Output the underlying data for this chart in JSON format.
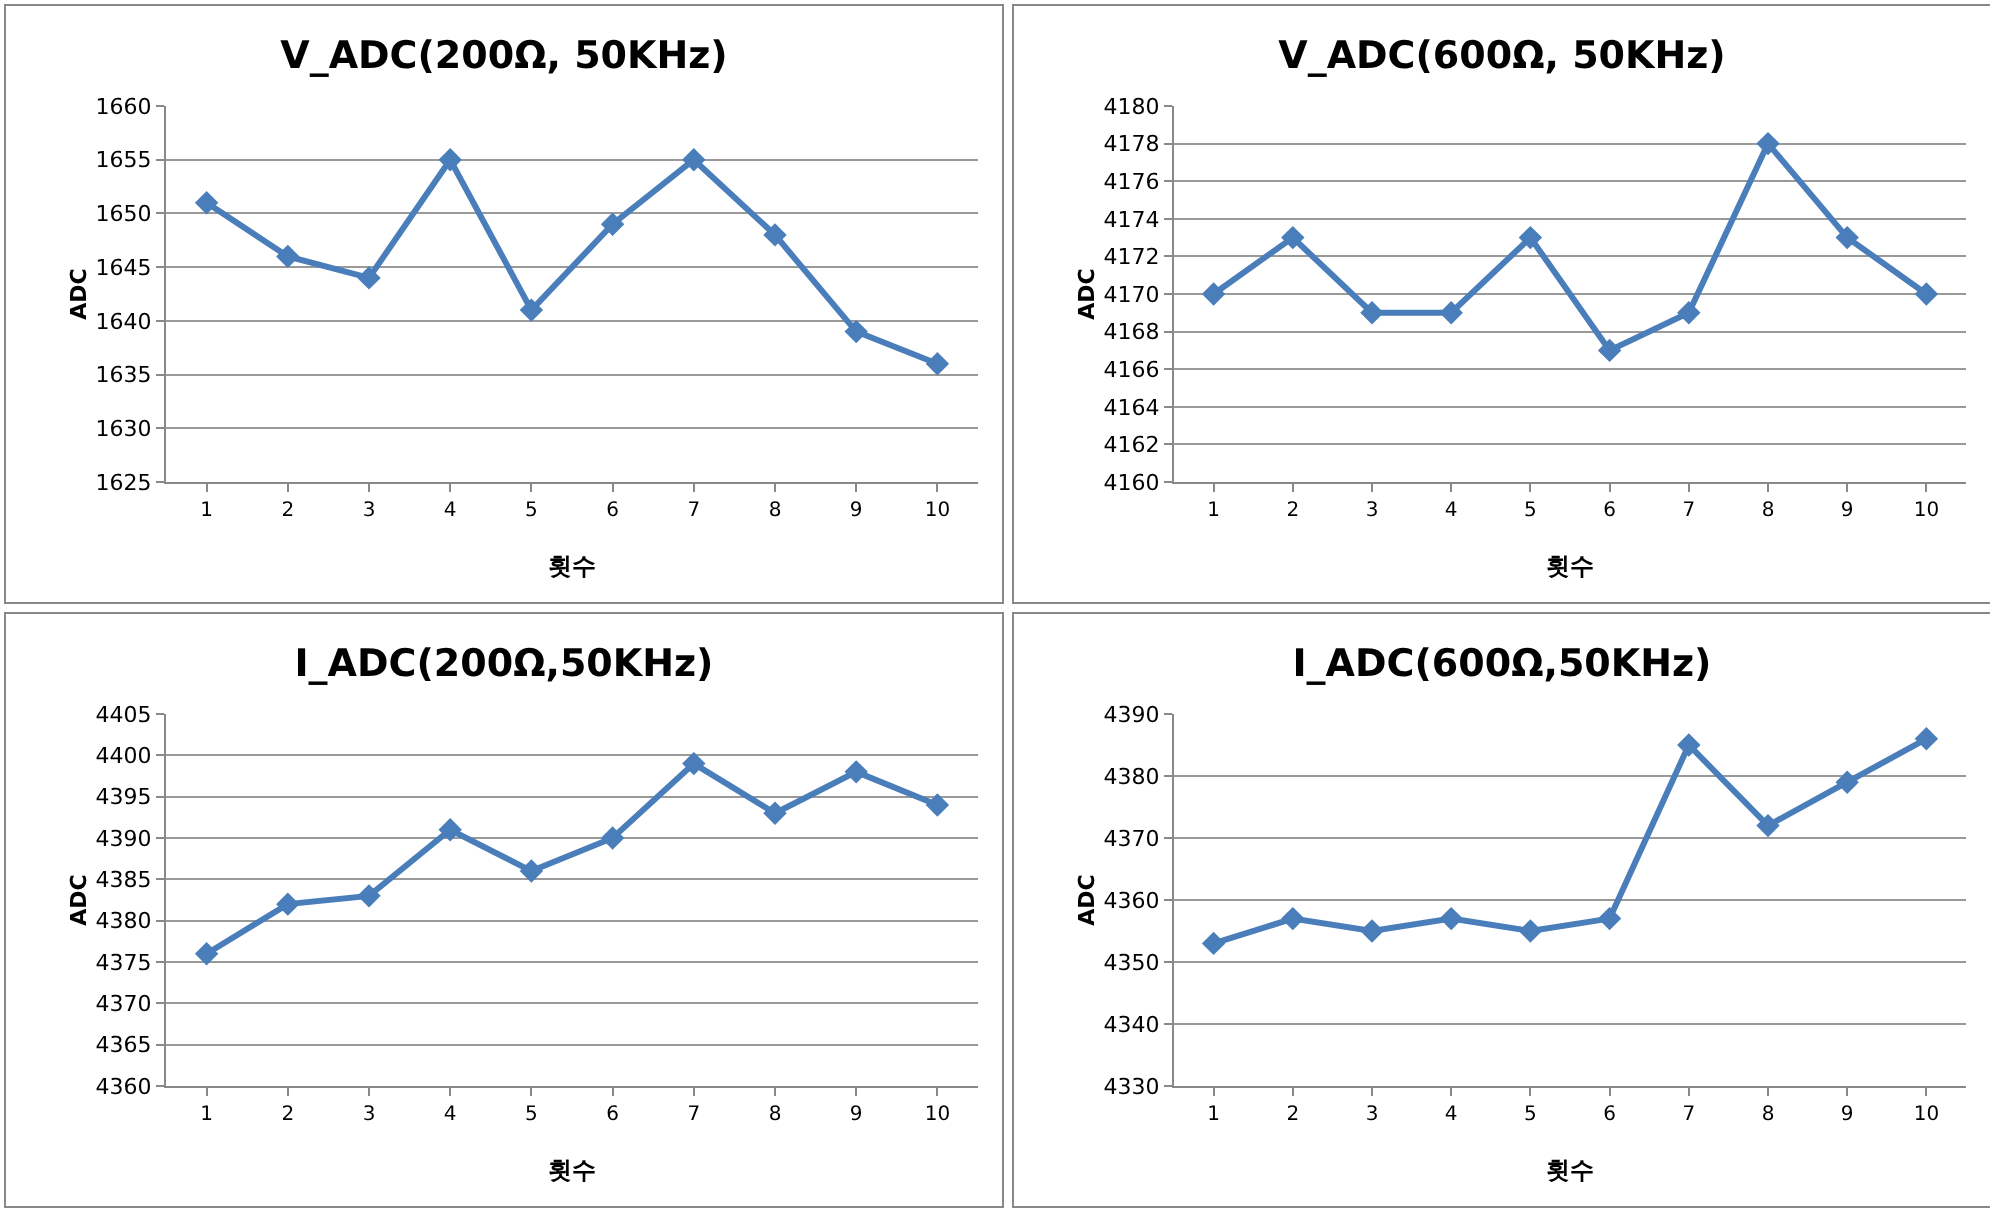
{
  "chart_data": [
    {
      "type": "line",
      "title": "V_ADC(200Ω, 50KHz)",
      "xlabel": "횟수",
      "ylabel": "ADC",
      "categories": [
        "1",
        "2",
        "3",
        "4",
        "5",
        "6",
        "7",
        "8",
        "9",
        "10"
      ],
      "series": [
        {
          "color": "#4a7ebb",
          "values": [
            1651,
            1646,
            1644,
            1655,
            1641,
            1649,
            1655,
            1648,
            1639,
            1636
          ]
        }
      ],
      "ylim": [
        1625,
        1660
      ],
      "yticks": [
        1625,
        1630,
        1635,
        1640,
        1645,
        1650,
        1655,
        1660
      ],
      "grid": "y",
      "marker": "diamond",
      "line_style": "solid"
    },
    {
      "type": "line",
      "title": "V_ADC(600Ω, 50KHz)",
      "xlabel": "횟수",
      "ylabel": "ADC",
      "categories": [
        "1",
        "2",
        "3",
        "4",
        "5",
        "6",
        "7",
        "8",
        "9",
        "10"
      ],
      "series": [
        {
          "color": "#4a7ebb",
          "values": [
            4170,
            4173,
            4169,
            4169,
            4173,
            4167,
            4169,
            4178,
            4173,
            4170
          ]
        }
      ],
      "ylim": [
        4160,
        4180
      ],
      "yticks": [
        4160,
        4162,
        4164,
        4166,
        4168,
        4170,
        4172,
        4174,
        4176,
        4178,
        4180
      ],
      "grid": "y",
      "marker": "diamond",
      "line_style": "solid"
    },
    {
      "type": "line",
      "title": "I_ADC(200Ω,50KHz)",
      "xlabel": "횟수",
      "ylabel": "ADC",
      "categories": [
        "1",
        "2",
        "3",
        "4",
        "5",
        "6",
        "7",
        "8",
        "9",
        "10"
      ],
      "series": [
        {
          "color": "#4a7ebb",
          "values": [
            4376,
            4382,
            4383,
            4391,
            4386,
            4390,
            4399,
            4393,
            4398,
            4394
          ]
        }
      ],
      "ylim": [
        4360,
        4405
      ],
      "yticks": [
        4360,
        4365,
        4370,
        4375,
        4380,
        4385,
        4390,
        4395,
        4400,
        4405
      ],
      "grid": "y",
      "marker": "diamond",
      "line_style": "solid"
    },
    {
      "type": "line",
      "title": "I_ADC(600Ω,50KHz)",
      "xlabel": "횟수",
      "ylabel": "ADC",
      "categories": [
        "1",
        "2",
        "3",
        "4",
        "5",
        "6",
        "7",
        "8",
        "9",
        "10"
      ],
      "series": [
        {
          "color": "#4a7ebb",
          "values": [
            4353,
            4357,
            4355,
            4357,
            4355,
            4357,
            4385,
            4372,
            4379,
            4386
          ]
        }
      ],
      "ylim": [
        4330,
        4390
      ],
      "yticks": [
        4330,
        4340,
        4350,
        4360,
        4370,
        4380,
        4390
      ],
      "grid": "y",
      "marker": "diamond",
      "line_style": "solid"
    }
  ]
}
